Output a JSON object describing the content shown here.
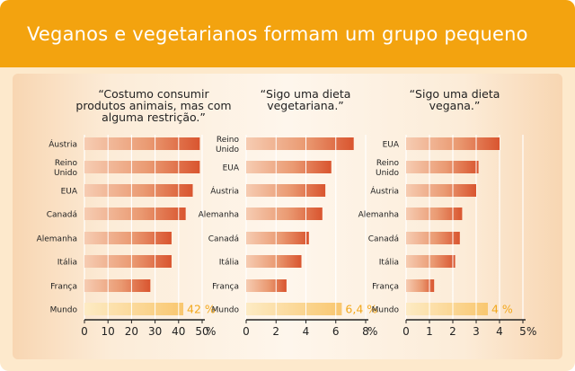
{
  "header": {
    "title": "Veganos e vegetarianos formam um grupo pequeno"
  },
  "colors": {
    "header": "#f3a30f",
    "bar": "#d9552f",
    "bar_light": "#f6ccb2",
    "world_bar": "#f9c770",
    "world_label": "#f2a81c"
  },
  "chart_data": [
    {
      "type": "bar",
      "orientation": "horizontal",
      "title": "“Costumo consumir produtos animais, mas com alguma restrição.”",
      "title_lines": [
        "“Costumo consumir",
        "produtos animais, mas com",
        "alguma restrição.”"
      ],
      "categories": [
        [
          "Áustria"
        ],
        [
          "Reino",
          "Unido"
        ],
        [
          "EUA"
        ],
        [
          "Canadá"
        ],
        [
          "Alemanha"
        ],
        [
          "Itália"
        ],
        [
          "França"
        ],
        [
          "Mundo"
        ]
      ],
      "values": [
        49,
        49,
        46,
        43,
        37,
        37,
        28,
        42
      ],
      "highlight_label": "42 %",
      "xticks": [
        0,
        10,
        20,
        30,
        40,
        50
      ],
      "xlim": [
        0,
        50
      ],
      "unit": "%"
    },
    {
      "type": "bar",
      "orientation": "horizontal",
      "title": "“Sigo uma dieta vegetariana.”",
      "title_lines": [
        "“Sigo uma dieta",
        "vegetariana.”"
      ],
      "categories": [
        [
          "Reino",
          "Unido"
        ],
        [
          "EUA"
        ],
        [
          "Áustria"
        ],
        [
          "Alemanha"
        ],
        [
          "Canadá"
        ],
        [
          "Itália"
        ],
        [
          "França"
        ],
        [
          "Mundo"
        ]
      ],
      "values": [
        7.2,
        5.7,
        5.3,
        5.1,
        4.2,
        3.7,
        2.7,
        6.4
      ],
      "highlight_label": "6,4 %",
      "xticks": [
        0,
        2,
        4,
        6,
        8
      ],
      "xlim": [
        0,
        8
      ],
      "unit": "%"
    },
    {
      "type": "bar",
      "orientation": "horizontal",
      "title": "“Sigo uma dieta vegana.”",
      "title_lines": [
        "“Sigo uma dieta",
        "vegana.”"
      ],
      "categories": [
        [
          "EUA"
        ],
        [
          "Reino",
          "Unido"
        ],
        [
          "Áustria"
        ],
        [
          "Alemanha"
        ],
        [
          "Canadá"
        ],
        [
          "Itália"
        ],
        [
          "França"
        ],
        [
          "Mundo"
        ]
      ],
      "values": [
        4.0,
        3.1,
        3.0,
        2.4,
        2.3,
        2.1,
        1.2,
        3.5
      ],
      "highlight_label": "4 %",
      "xticks": [
        0,
        1,
        2,
        3,
        4,
        5
      ],
      "xlim": [
        0,
        5
      ],
      "unit": "%"
    }
  ]
}
